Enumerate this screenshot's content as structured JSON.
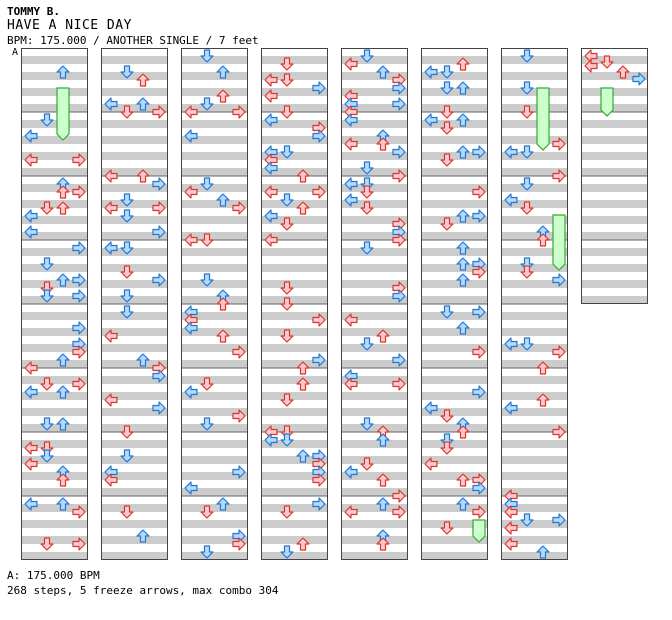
{
  "song": {
    "artist": "TOMMY B.",
    "title": "HAVE A NICE DAY",
    "meta": "BPM: 175.000 / ANOTHER SINGLE / 7 feet",
    "marker": "A"
  },
  "footer": {
    "bpm": "A: 175.000 BPM",
    "stats": "268 steps, 5 freeze arrows, max combo 304"
  },
  "colors": {
    "stripe": "#cccccc",
    "red_fill": "#ffcccc",
    "red_stroke": "#dd3333",
    "blue_fill": "#b3d9ff",
    "blue_stroke": "#2277cc",
    "freeze_fill": "#ccffcc",
    "freeze_stroke": "#33aa33"
  },
  "chart_data": {
    "type": "step-chart",
    "columns": 8,
    "lanes": [
      "left",
      "down",
      "up",
      "right"
    ],
    "measures_per_column": 8,
    "total_steps": 268,
    "freeze_arrows": 5,
    "max_combo": 304
  }
}
